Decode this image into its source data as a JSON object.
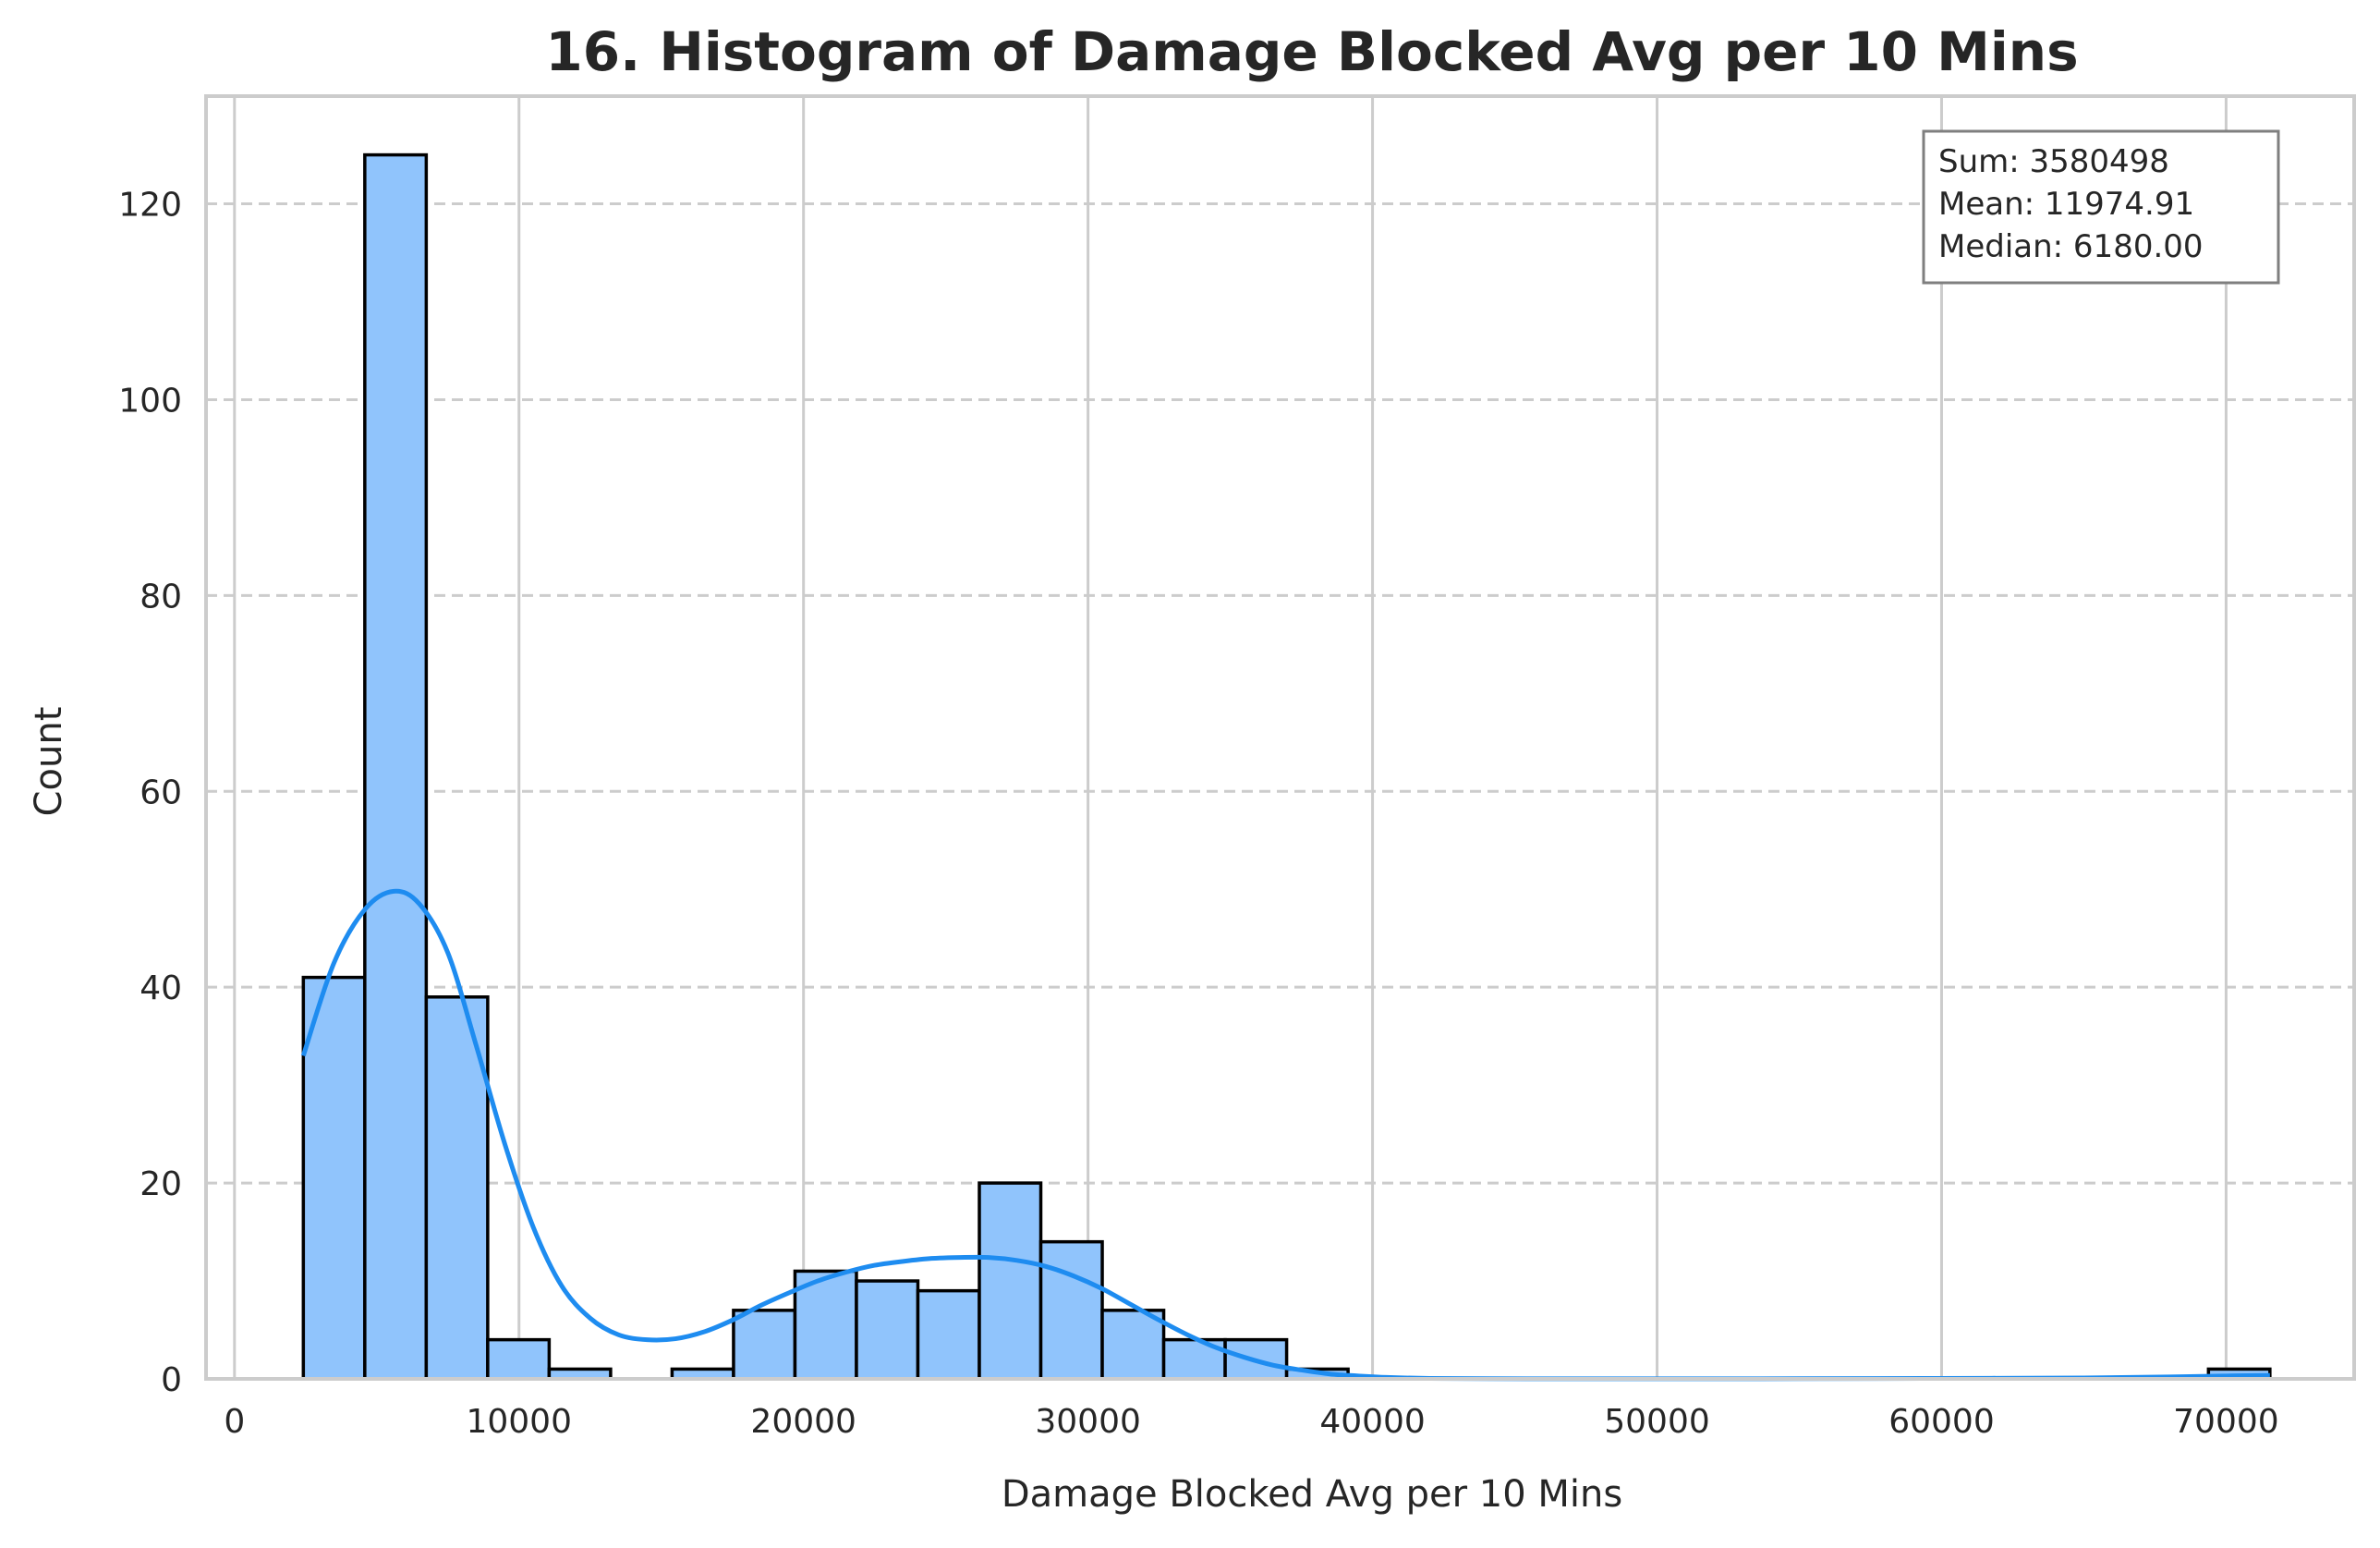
{
  "chart_data": {
    "type": "bar",
    "title": "16. Histogram of Damage Blocked Avg per 10 Mins",
    "xlabel": "Damage Blocked Avg per 10 Mins",
    "ylabel": "Count",
    "xlim": [
      -1000,
      74500
    ],
    "ylim": [
      0,
      131
    ],
    "xticks": [
      0,
      10000,
      20000,
      30000,
      40000,
      50000,
      60000,
      70000
    ],
    "yticks": [
      0,
      20,
      40,
      60,
      80,
      100,
      120
    ],
    "grid": true,
    "bin_width": 2160,
    "bins": [
      {
        "start": 2420,
        "count": 41
      },
      {
        "start": 4580,
        "count": 125
      },
      {
        "start": 6740,
        "count": 39
      },
      {
        "start": 8900,
        "count": 4
      },
      {
        "start": 11060,
        "count": 1
      },
      {
        "start": 13220,
        "count": 0
      },
      {
        "start": 15380,
        "count": 1
      },
      {
        "start": 17540,
        "count": 7
      },
      {
        "start": 19700,
        "count": 11
      },
      {
        "start": 21860,
        "count": 10
      },
      {
        "start": 24020,
        "count": 9
      },
      {
        "start": 26180,
        "count": 20
      },
      {
        "start": 28340,
        "count": 14
      },
      {
        "start": 30500,
        "count": 7
      },
      {
        "start": 32660,
        "count": 4
      },
      {
        "start": 34820,
        "count": 4
      },
      {
        "start": 36980,
        "count": 1
      },
      {
        "start": 69380,
        "count": 1
      }
    ],
    "kde": {
      "x": [
        2420,
        3500,
        4600,
        5600,
        6500,
        7500,
        8500,
        9500,
        10500,
        11500,
        12500,
        13500,
        14500,
        15500,
        16500,
        17500,
        18500,
        19500,
        20500,
        21500,
        22500,
        23500,
        24500,
        25500,
        26500,
        27500,
        28500,
        29500,
        30500,
        31500,
        32500,
        33500,
        34500,
        35500,
        36500,
        37500,
        38500,
        39500,
        40500,
        42000,
        44000,
        47000,
        50000,
        55000,
        60000,
        65000,
        68000,
        70000,
        71540
      ],
      "y": [
        33,
        42.5,
        48,
        49.8,
        48.5,
        43.5,
        34,
        24,
        15.5,
        9.5,
        6.2,
        4.5,
        4.0,
        4.1,
        4.8,
        6.0,
        7.5,
        8.8,
        10.0,
        10.9,
        11.6,
        12.0,
        12.3,
        12.4,
        12.4,
        12.1,
        11.5,
        10.5,
        9.2,
        7.6,
        6.0,
        4.5,
        3.2,
        2.2,
        1.4,
        0.9,
        0.5,
        0.3,
        0.15,
        0.05,
        0.02,
        0.01,
        0.01,
        0.02,
        0.05,
        0.1,
        0.2,
        0.3,
        0.35
      ]
    },
    "colors": {
      "bar_fill": "#90c4fc",
      "bar_edge": "#000000",
      "kde_line": "#1e8cf0",
      "grid": "#cccccc",
      "spine": "#cccccc",
      "text": "#262626"
    },
    "stats_box": {
      "sum": "Sum: 3580498",
      "mean": "Mean: 11974.91",
      "median": "Median: 6180.00",
      "placement": "top-right"
    }
  }
}
